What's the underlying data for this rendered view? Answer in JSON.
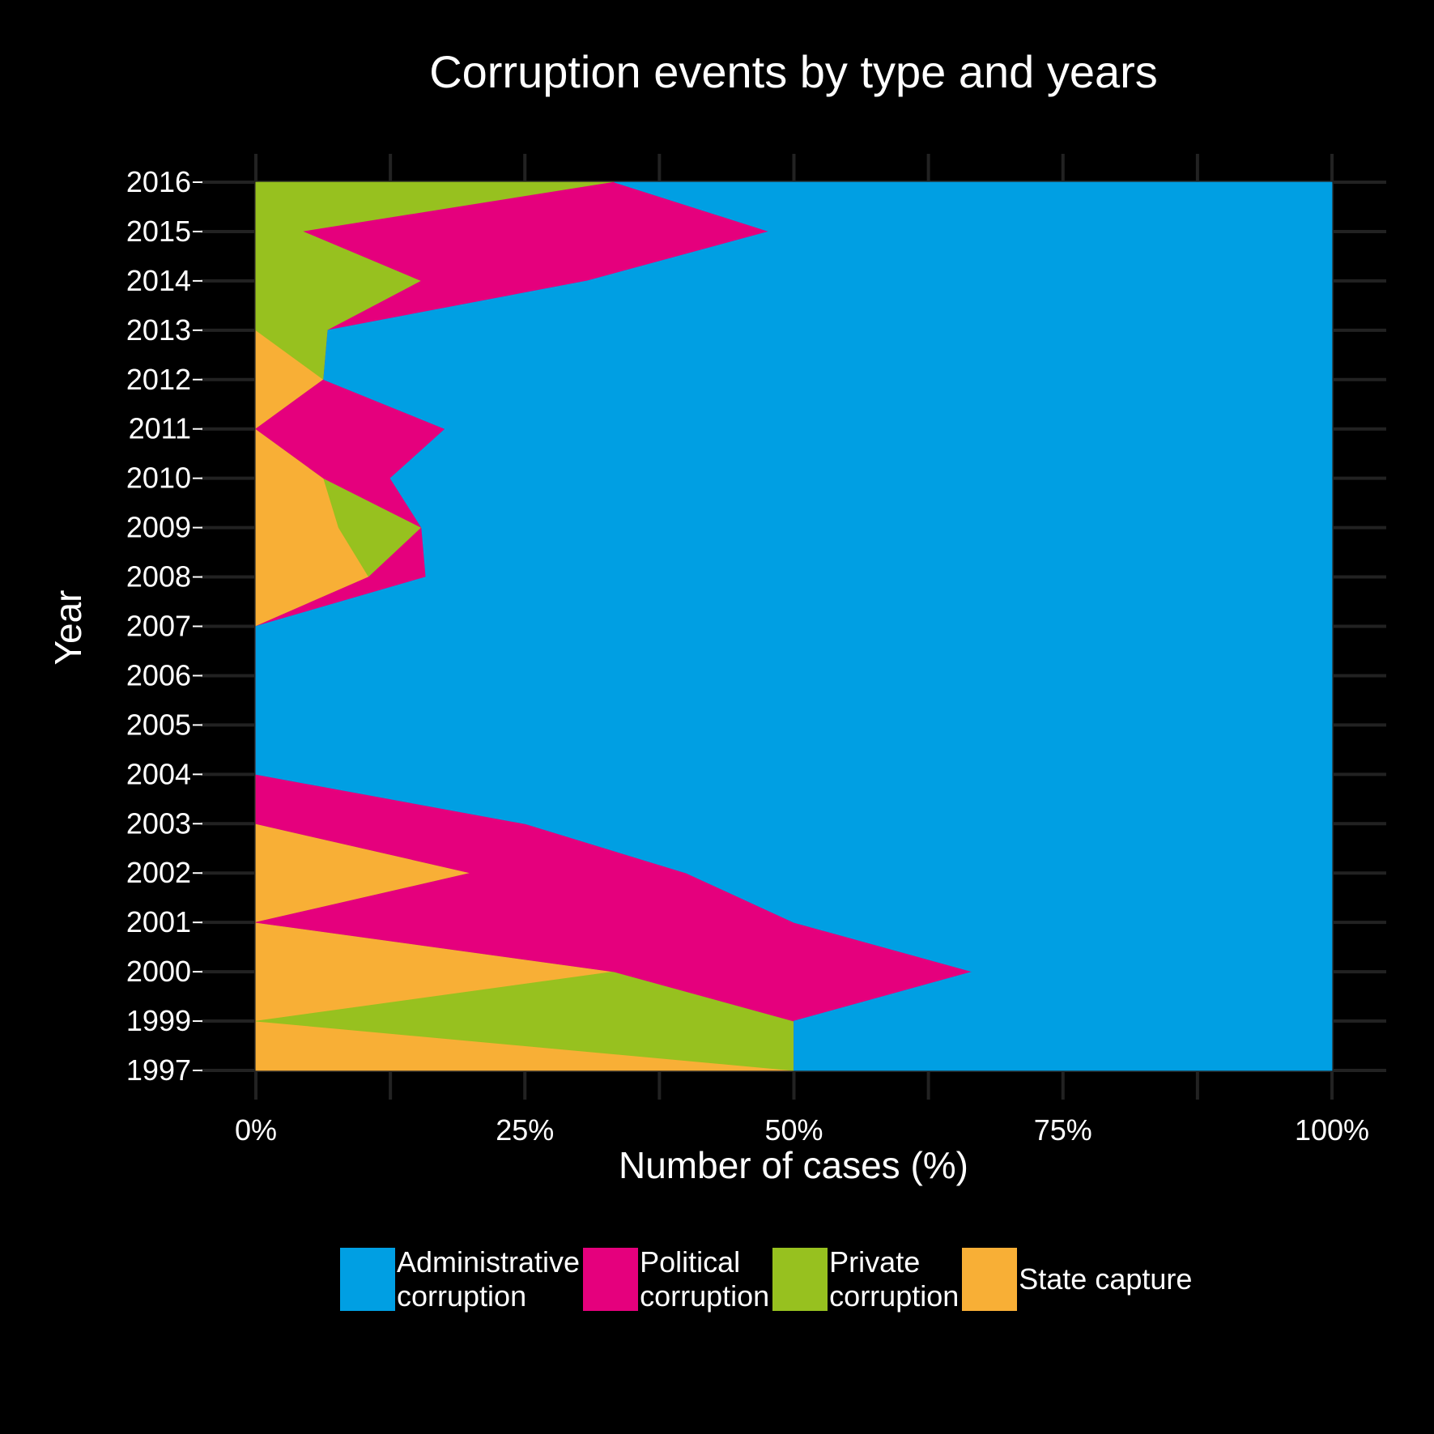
{
  "chart_data": {
    "type": "area",
    "orientation": "horizontal",
    "stacked": "percent",
    "title": "Corruption events by type and years",
    "xlabel": "Number of cases (%)",
    "ylabel": "Year",
    "xlim": [
      0,
      100
    ],
    "x_ticks": [
      "0%",
      "25%",
      "50%",
      "75%",
      "100%"
    ],
    "years": [
      "1997",
      "1999",
      "2000",
      "2001",
      "2002",
      "2003",
      "2004",
      "2005",
      "2006",
      "2007",
      "2008",
      "2009",
      "2010",
      "2011",
      "2012",
      "2013",
      "2014",
      "2015",
      "2016"
    ],
    "series": [
      {
        "name": "State capture",
        "color": "#F8AF36",
        "values": [
          50,
          0,
          33.3,
          0,
          20,
          0,
          0,
          0,
          0,
          0,
          10.5,
          7.7,
          6.3,
          0,
          6.3,
          0,
          0,
          0,
          0
        ]
      },
      {
        "name": "Private corruption",
        "color": "#97C11F",
        "values": [
          0,
          50,
          0,
          0,
          0,
          0,
          0,
          0,
          0,
          0,
          0,
          7.7,
          0,
          0,
          0,
          6.7,
          15.4,
          4.5,
          33.3
        ]
      },
      {
        "name": "Political corruption",
        "color": "#E5007D",
        "values": [
          0,
          0,
          33.3,
          50,
          20,
          25,
          0,
          0,
          0,
          0,
          5.3,
          0,
          6.2,
          17.6,
          0,
          0,
          15.4,
          43.2,
          0
        ]
      },
      {
        "name": "Administrative corruption",
        "color": "#009FE3",
        "values": [
          50,
          50,
          33.4,
          50,
          60,
          75,
          100,
          100,
          100,
          100,
          84.2,
          84.6,
          87.5,
          82.4,
          93.7,
          93.3,
          69.2,
          52.3,
          66.7
        ]
      }
    ],
    "legend_position": "bottom",
    "legend": [
      {
        "label": "Administrative\ncorruption",
        "color": "#009FE3"
      },
      {
        "label": "Political\ncorruption",
        "color": "#E5007D"
      },
      {
        "label": "Private\ncorruption",
        "color": "#97C11F"
      },
      {
        "label": "State capture",
        "color": "#F8AF36"
      }
    ],
    "colors": {
      "background": "#000000",
      "grid": "#222222",
      "text": "#ffffff"
    },
    "grid": true
  }
}
